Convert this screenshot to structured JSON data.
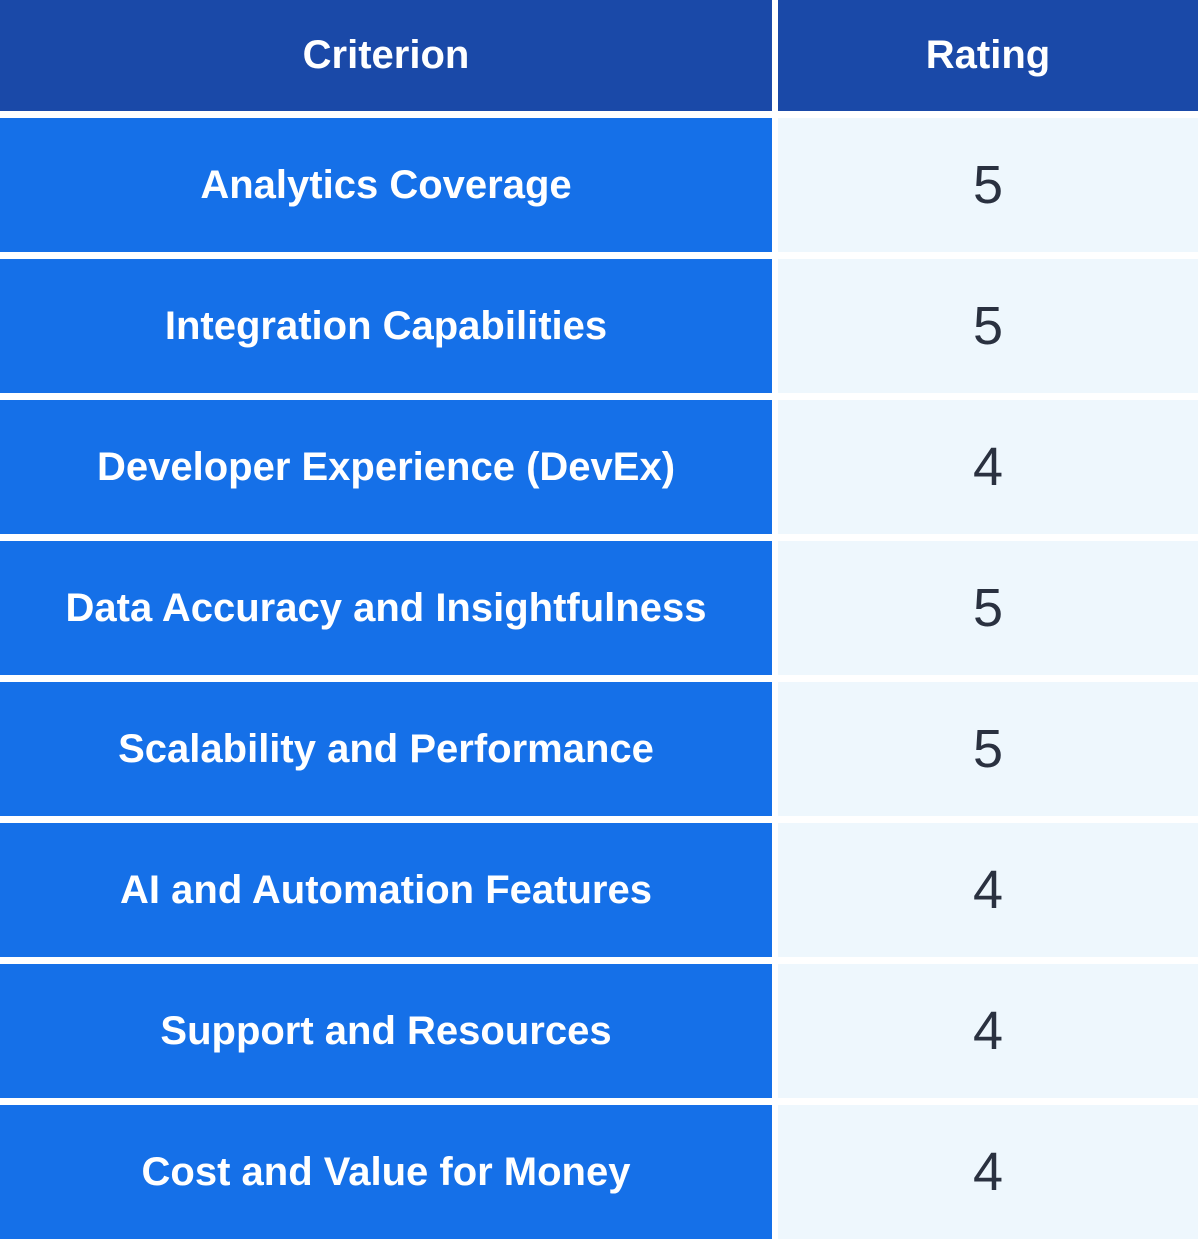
{
  "header": {
    "criterion": "Criterion",
    "rating": "Rating"
  },
  "rows": [
    {
      "criterion": "Analytics Coverage",
      "rating": "5"
    },
    {
      "criterion": "Integration Capabilities",
      "rating": "5"
    },
    {
      "criterion": "Developer Experience (DevEx)",
      "rating": "4"
    },
    {
      "criterion": "Data Accuracy and Insightfulness",
      "rating": "5"
    },
    {
      "criterion": "Scalability and Performance",
      "rating": "5"
    },
    {
      "criterion": "AI and Automation Features",
      "rating": "4"
    },
    {
      "criterion": "Support and Resources",
      "rating": "4"
    },
    {
      "criterion": "Cost and Value for Money",
      "rating": "4"
    }
  ]
}
